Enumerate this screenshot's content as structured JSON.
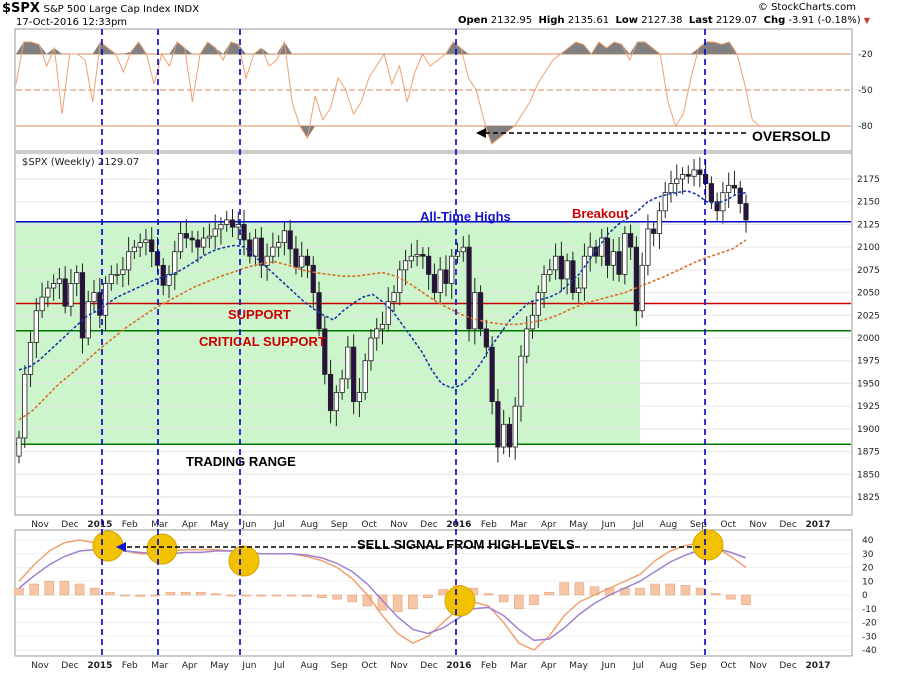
{
  "header": {
    "symbol": "$SPX",
    "name": "S&P 500 Large Cap Index",
    "exchange": "INDX",
    "date": "17-Oct-2016 12:33pm",
    "open_label": "Open",
    "open": "2132.95",
    "high_label": "High",
    "high": "2135.61",
    "low_label": "Low",
    "low": "2127.38",
    "last_label": "Last",
    "last": "2129.07",
    "chg_label": "Chg",
    "chg": "-3.91 (-0.18%)",
    "brand": "© StockCharts.com"
  },
  "price_legend": "$SPX (Weekly) 2129.07",
  "annotations": {
    "oversold": "OVERSOLD",
    "ath": "All-Time Highs",
    "breakout": "Breakout",
    "support": "SUPPORT",
    "critical": "CRITICAL SUPPORT",
    "range": "TRADING RANGE",
    "sell": "SELL SIGNAL FROM HIGH LEVELS"
  },
  "colors": {
    "range_fill": "#ccf5cc",
    "ath_line": "#0000cc",
    "support_line": "#cc0000",
    "range_line": "#007700",
    "signal_marker": "#f2c200",
    "vline": "#0000cc",
    "ma_fast": "#1a3aa8",
    "ma_slow": "#d96f2c"
  },
  "chart_data": [
    {
      "type": "area",
      "panel": "oscillator",
      "yticks": [
        -20,
        -50,
        -80
      ],
      "ylim": [
        -100,
        0
      ],
      "values": [
        -45,
        -10,
        -10,
        -12,
        -30,
        -15,
        -70,
        -20,
        -20,
        -25,
        -60,
        -10,
        -15,
        -20,
        -35,
        -18,
        -10,
        -20,
        -45,
        -20,
        -30,
        -10,
        -15,
        -60,
        -20,
        -10,
        -15,
        -25,
        -10,
        -12,
        -40,
        -20,
        -15,
        -30,
        -25,
        -10,
        -60,
        -80,
        -90,
        -55,
        -75,
        -65,
        -40,
        -50,
        -70,
        -60,
        -40,
        -30,
        -20,
        -45,
        -30,
        -60,
        -35,
        -20,
        -30,
        -25,
        -20,
        -10,
        -15,
        -40,
        -50,
        -75,
        -95,
        -90,
        -85,
        -80,
        -70,
        -60,
        -45,
        -35,
        -25,
        -20,
        -15,
        -10,
        -12,
        -20,
        -10,
        -15,
        -10,
        -12,
        -25,
        -10,
        -10,
        -15,
        -20,
        -60,
        -80,
        -70,
        -40,
        -15,
        -10,
        -10,
        -12,
        -10,
        -20,
        -45,
        -75,
        -80
      ]
    },
    {
      "type": "bar",
      "panel": "price",
      "series_name": "$SPX (Weekly)",
      "ylim": [
        1800,
        2200
      ],
      "yticks": [
        1825,
        1850,
        1875,
        1900,
        1925,
        1950,
        1975,
        2000,
        2025,
        2050,
        2075,
        2100,
        2125,
        2150,
        2175
      ],
      "x": [
        "Nov",
        "Dec",
        "2015",
        "Feb",
        "Mar",
        "Apr",
        "May",
        "Jun",
        "Jul",
        "Aug",
        "Sep",
        "Oct",
        "Nov",
        "Dec",
        "2016",
        "Feb",
        "Mar",
        "Apr",
        "May",
        "Jun",
        "Jul",
        "Aug",
        "Sep",
        "Oct",
        "Nov",
        "Dec",
        "2017"
      ],
      "levels": {
        "all_time_high": 2128,
        "support": 2038,
        "critical_support": 2008,
        "range_bottom": 1883
      },
      "closes": [
        1890,
        1960,
        1995,
        2030,
        2045,
        2055,
        2060,
        2065,
        2035,
        2060,
        2072,
        2000,
        2040,
        2050,
        2025,
        2060,
        2070,
        2070,
        2075,
        2095,
        2100,
        2105,
        2108,
        2095,
        2080,
        2058,
        2070,
        2095,
        2115,
        2110,
        2108,
        2100,
        2110,
        2112,
        2120,
        2125,
        2130,
        2122,
        2125,
        2108,
        2090,
        2110,
        2080,
        2090,
        2100,
        2105,
        2118,
        2098,
        2078,
        2090,
        2080,
        2050,
        2010,
        1960,
        1920,
        1940,
        1955,
        1990,
        1930,
        1940,
        1975,
        2000,
        2010,
        2015,
        2040,
        2050,
        2075,
        2085,
        2090,
        2092,
        2090,
        2070,
        2050,
        2075,
        2060,
        2090,
        2095,
        2100,
        2010,
        2050,
        2010,
        1990,
        1930,
        1880,
        1905,
        1880,
        1925,
        1980,
        2010,
        2025,
        2050,
        2070,
        2075,
        2090,
        2065,
        2085,
        2050,
        2055,
        2090,
        2100,
        2090,
        2110,
        2080,
        2095,
        2070,
        2115,
        2100,
        2030,
        2080,
        2120,
        2115,
        2140,
        2160,
        2170,
        2175,
        2180,
        2178,
        2185,
        2180,
        2170,
        2150,
        2140,
        2160,
        2168,
        2165,
        2148,
        2130
      ],
      "ma_fast": [
        1965,
        1968,
        1975,
        1985,
        1995,
        2005,
        2015,
        2025,
        2030,
        2038,
        2045,
        2050,
        2055,
        2060,
        2065,
        2068,
        2072,
        2078,
        2085,
        2092,
        2097,
        2100,
        2102,
        2100,
        2090,
        2080,
        2070,
        2060,
        2050,
        2040,
        2032,
        2025,
        2020,
        2030,
        2038,
        2045,
        2048,
        2040,
        2030,
        2015,
        2000,
        1985,
        1965,
        1950,
        1945,
        1948,
        1958,
        1972,
        1990,
        2005,
        2020,
        2030,
        2040,
        2042,
        2045,
        2050,
        2060,
        2070,
        2085,
        2100,
        2115,
        2125,
        2132,
        2140,
        2150,
        2155,
        2158,
        2160,
        2162,
        2158,
        2150,
        2148,
        2152,
        2158,
        2160
      ],
      "ma_slow": [
        1910,
        1920,
        1935,
        1950,
        1962,
        1975,
        1988,
        2000,
        2012,
        2022,
        2032,
        2040,
        2048,
        2056,
        2062,
        2068,
        2073,
        2078,
        2082,
        2084,
        2080,
        2075,
        2072,
        2070,
        2068,
        2068,
        2070,
        2072,
        2068,
        2060,
        2050,
        2040,
        2032,
        2025,
        2020,
        2017,
        2015,
        2015,
        2017,
        2020,
        2025,
        2032,
        2038,
        2042,
        2046,
        2050,
        2056,
        2062,
        2068,
        2075,
        2082,
        2088,
        2093,
        2098,
        2108
      ]
    },
    {
      "type": "line",
      "panel": "macd",
      "yticks": [
        40,
        30,
        20,
        10,
        0,
        -10,
        -20,
        -30,
        -40
      ],
      "ylim": [
        -45,
        45
      ],
      "series": [
        {
          "name": "",
          "values": [
            10,
            22,
            32,
            38,
            40,
            38,
            35,
            32,
            30,
            30,
            32,
            33,
            33,
            33,
            32,
            31,
            30,
            30,
            30,
            28,
            25,
            20,
            12,
            0,
            -15,
            -28,
            -35,
            -30,
            -20,
            -10,
            -5,
            -8,
            -20,
            -35,
            -40,
            -30,
            -15,
            -5,
            0,
            5,
            10,
            15,
            25,
            32,
            36,
            38,
            35,
            28,
            20
          ]
        },
        {
          "name": "",
          "values": [
            5,
            14,
            22,
            28,
            32,
            33,
            33,
            32,
            31,
            30,
            30,
            31,
            31,
            32,
            32,
            31,
            30,
            30,
            30,
            29,
            27,
            23,
            17,
            8,
            -4,
            -16,
            -25,
            -28,
            -24,
            -17,
            -10,
            -9,
            -15,
            -25,
            -33,
            -32,
            -24,
            -14,
            -6,
            0,
            5,
            10,
            17,
            24,
            29,
            33,
            34,
            31,
            27
          ]
        }
      ],
      "histogram": [
        5,
        8,
        10,
        10,
        8,
        5,
        2,
        0,
        -1,
        0,
        2,
        2,
        2,
        1,
        0,
        0,
        0,
        0,
        0,
        -1,
        -2,
        -3,
        -5,
        -8,
        -11,
        -12,
        -10,
        -2,
        4,
        7,
        5,
        1,
        -5,
        -10,
        -7,
        2,
        9,
        9,
        6,
        5,
        5,
        5,
        8,
        8,
        7,
        5,
        1,
        -3,
        -7
      ]
    }
  ],
  "x_axis": {
    "ticks": [
      {
        "label": "Nov",
        "bold": false
      },
      {
        "label": "Dec",
        "bold": false
      },
      {
        "label": "2015",
        "bold": true
      },
      {
        "label": "Feb",
        "bold": false
      },
      {
        "label": "Mar",
        "bold": false
      },
      {
        "label": "Apr",
        "bold": false
      },
      {
        "label": "May",
        "bold": false
      },
      {
        "label": "Jun",
        "bold": false
      },
      {
        "label": "Jul",
        "bold": false
      },
      {
        "label": "Aug",
        "bold": false
      },
      {
        "label": "Sep",
        "bold": false
      },
      {
        "label": "Oct",
        "bold": false
      },
      {
        "label": "Nov",
        "bold": false
      },
      {
        "label": "Dec",
        "bold": false
      },
      {
        "label": "2016",
        "bold": true
      },
      {
        "label": "Feb",
        "bold": false
      },
      {
        "label": "Mar",
        "bold": false
      },
      {
        "label": "Apr",
        "bold": false
      },
      {
        "label": "May",
        "bold": false
      },
      {
        "label": "Jun",
        "bold": false
      },
      {
        "label": "Jul",
        "bold": false
      },
      {
        "label": "Aug",
        "bold": false
      },
      {
        "label": "Sep",
        "bold": false
      },
      {
        "label": "Oct",
        "bold": false
      },
      {
        "label": "Nov",
        "bold": false
      },
      {
        "label": "Dec",
        "bold": false
      },
      {
        "label": "2017",
        "bold": true
      }
    ]
  }
}
